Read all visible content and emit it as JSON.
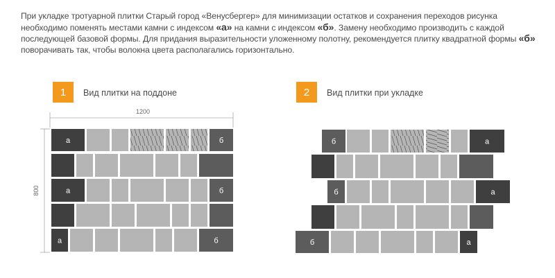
{
  "intro": {
    "p1": "При укладке тротуарной плитки Старый город «Венусбергер» для минимизации остатков и сохранения переходов рисунка необходимо поменять местами камни с индексом ",
    "a1": "«а»",
    "p2": " на камни с индексом ",
    "b1": "«б»",
    "p3": ". Замену необходимо производить с каждой последующей базовой формы. Для придания выразительности уложенному полотну, рекомендуется плитку квадратной формы ",
    "b2": "«б»",
    "p4": " поворачивать так, чтобы волокна цвета располагались горизонтально."
  },
  "section1": {
    "number": "1",
    "label": "Вид плитки на поддоне"
  },
  "section2": {
    "number": "2",
    "label": "Вид плитки при укладке"
  },
  "dimensions": {
    "width": "1200",
    "height": "800"
  },
  "tile_labels": {
    "a": "а",
    "b": "б"
  },
  "colors": {
    "accent": "#f39a1e",
    "tile_light": "#b5b5b5",
    "tile_dark": "#3f3f3f",
    "tile_medium": "#5c5c5c",
    "grout": "#ffffff"
  }
}
